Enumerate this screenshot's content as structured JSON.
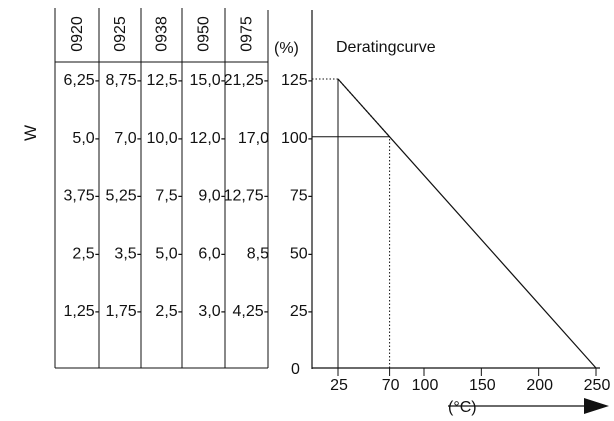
{
  "chart_data": {
    "type": "line",
    "title": "Deratingcurve",
    "ylabel": "W",
    "percent_axis_label": "(%)",
    "xlabel": "(°C)",
    "x_ticks": [
      "25",
      "70",
      "100",
      "150",
      "200",
      "250"
    ],
    "x_tick_values": [
      25,
      70,
      100,
      150,
      200,
      250
    ],
    "y_ticks": [
      "125-",
      "100-",
      "75-",
      "50-",
      "25-"
    ],
    "y_tick_values": [
      125,
      100,
      75,
      50,
      25
    ],
    "y_zero_label": "0",
    "xlim": [
      10,
      250
    ],
    "ylim": [
      0,
      125
    ],
    "series": [
      {
        "points": [
          [
            25,
            125
          ],
          [
            70,
            100
          ],
          [
            250,
            0
          ]
        ],
        "style": "solid"
      },
      {
        "points": [
          [
            25,
            125
          ],
          [
            70,
            100
          ]
        ],
        "style": "dotted"
      }
    ],
    "guides": [
      {
        "x": 25,
        "from": 0,
        "to": 125,
        "style": "solid"
      },
      {
        "x": 70,
        "from": 0,
        "to": 100,
        "style": "dotted"
      },
      {
        "y": 100,
        "from": 10,
        "to": 70,
        "style": "solid"
      },
      {
        "y": 125,
        "from": 10,
        "to": 25,
        "style": "dotted"
      }
    ],
    "wattage_table": {
      "columns": [
        "0920",
        "0925",
        "0938",
        "0950",
        "0975"
      ],
      "rows": [
        [
          "6,25-",
          "8,75-",
          "12,5-",
          "15,0-",
          "21,25-"
        ],
        [
          "5,0-",
          "7,0-",
          "10,0-",
          "12,0-",
          "17,0"
        ],
        [
          "3,75-",
          "5,25-",
          "7,5-",
          "9,0-",
          "12,75-"
        ],
        [
          "2,5-",
          "3,5-",
          "5,0-",
          "6,0-",
          "8,5"
        ],
        [
          "1,25-",
          "1,75-",
          "2,5-",
          "3,0-",
          "4,25-"
        ]
      ]
    },
    "grid": false,
    "legend": "none"
  }
}
